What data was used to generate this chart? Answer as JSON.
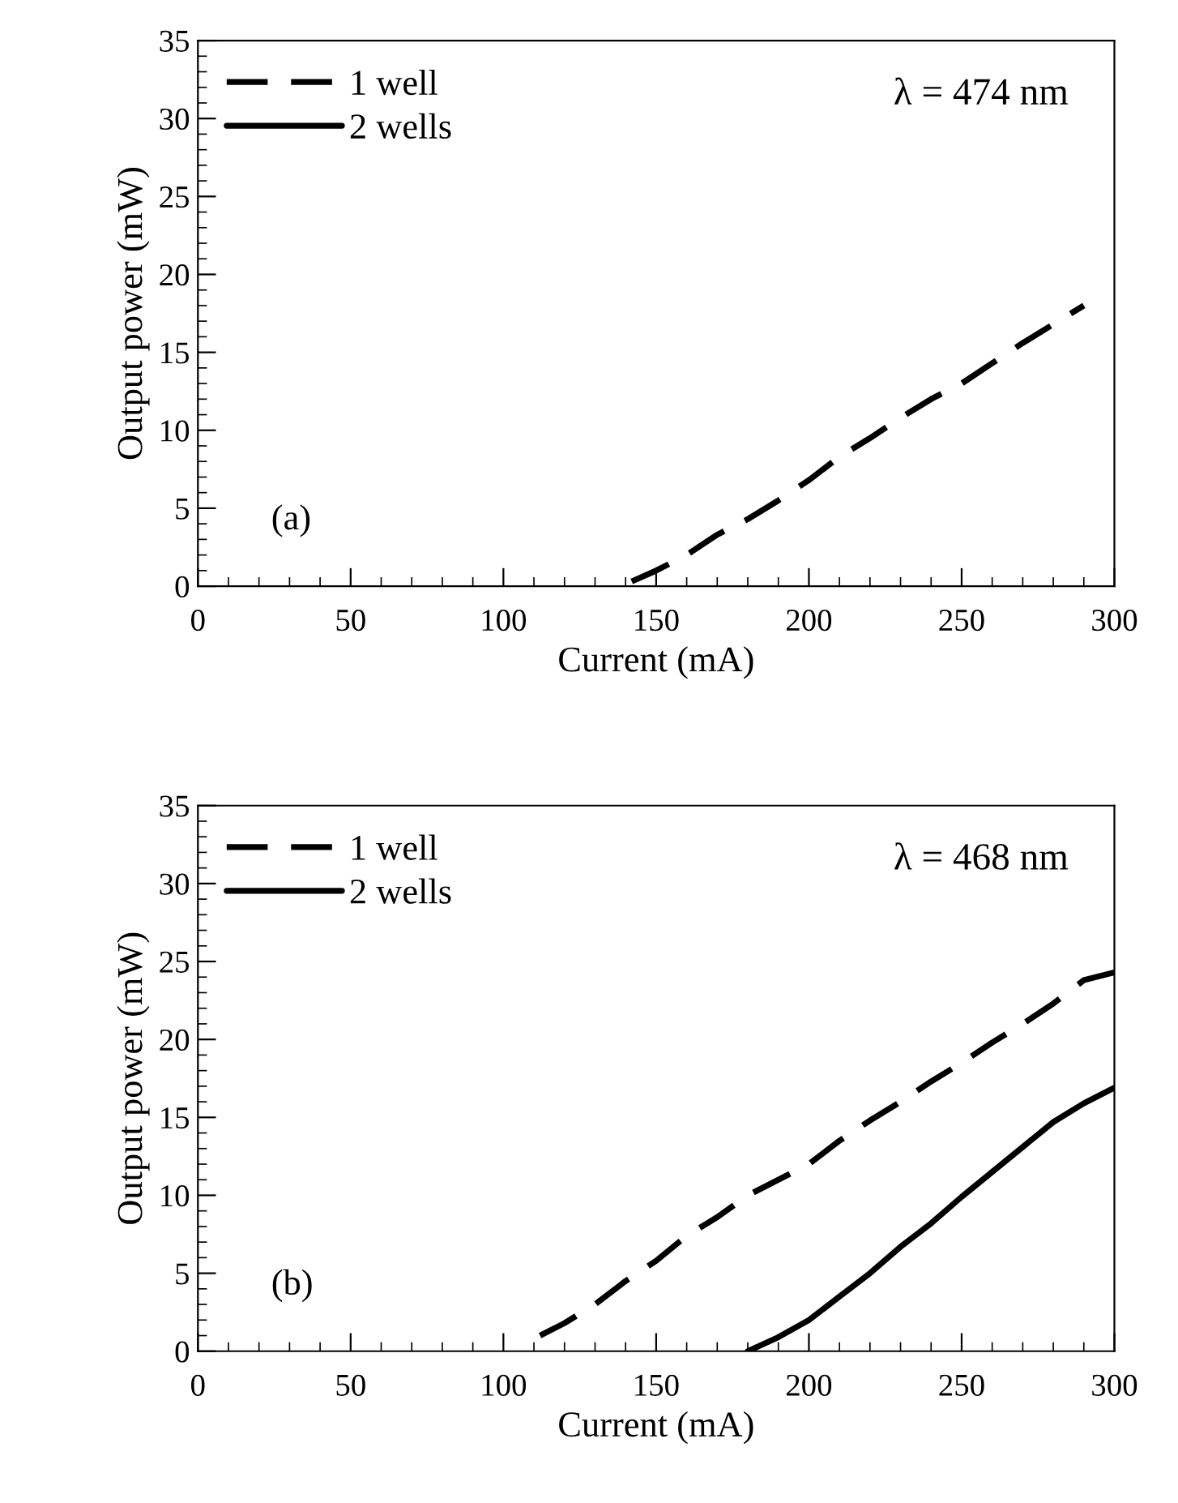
{
  "chart_data": [
    {
      "type": "line",
      "xlabel": "Current (mA)",
      "ylabel": "Output power (mW)",
      "xlim": [
        0,
        300
      ],
      "ylim": [
        0,
        35
      ],
      "xticks": [
        0,
        50,
        100,
        150,
        200,
        250,
        300
      ],
      "yticks": [
        0,
        5,
        10,
        15,
        20,
        25,
        30,
        35
      ],
      "grid": false,
      "legend": "top left",
      "annotations": [
        "λ = 474 nm",
        "(a)"
      ],
      "series": [
        {
          "name": "1 well",
          "color": "#000000",
          "line_style": "dashed",
          "x": [
            142,
            150,
            160,
            170,
            180,
            190,
            200,
            210,
            220,
            230,
            240,
            250,
            260,
            270,
            280,
            290
          ],
          "values": [
            0.3,
            1,
            2,
            3.3,
            4.3,
            5.5,
            6.8,
            8.3,
            9.5,
            10.8,
            12,
            13,
            14.3,
            15.6,
            16.8,
            18
          ]
        },
        {
          "name": "2 wells",
          "color": "#000000",
          "line_style": "solid"
        }
      ]
    },
    {
      "type": "line",
      "xlabel": "Current (mA)",
      "ylabel": "Output power (mW)",
      "xlim": [
        0,
        300
      ],
      "ylim": [
        0,
        35
      ],
      "xticks": [
        0,
        50,
        100,
        150,
        200,
        250,
        300
      ],
      "yticks": [
        0,
        5,
        10,
        15,
        20,
        25,
        30,
        35
      ],
      "grid": false,
      "legend": "top left",
      "annotations": [
        "λ = 468 nm",
        "(b)"
      ],
      "series": [
        {
          "name": "1 well",
          "color": "#000000",
          "line_style": "dashed",
          "x": [
            112,
            120,
            130,
            140,
            150,
            160,
            170,
            180,
            190,
            200,
            210,
            220,
            230,
            240,
            250,
            260,
            270,
            280,
            290,
            300
          ],
          "values": [
            1,
            1.8,
            3,
            4.5,
            5.8,
            7.4,
            8.6,
            10,
            11,
            12,
            13.5,
            14.8,
            16,
            17.3,
            18.5,
            19.8,
            21,
            22.3,
            23.8,
            24.3
          ]
        },
        {
          "name": "2 wells",
          "color": "#000000",
          "line_style": "solid",
          "x": [
            180,
            190,
            200,
            210,
            220,
            230,
            240,
            250,
            260,
            270,
            280,
            290,
            300
          ],
          "values": [
            0,
            0.9,
            2,
            3.5,
            5,
            6.7,
            8.2,
            9.9,
            11.5,
            13.1,
            14.7,
            15.9,
            16.9
          ]
        }
      ]
    }
  ]
}
